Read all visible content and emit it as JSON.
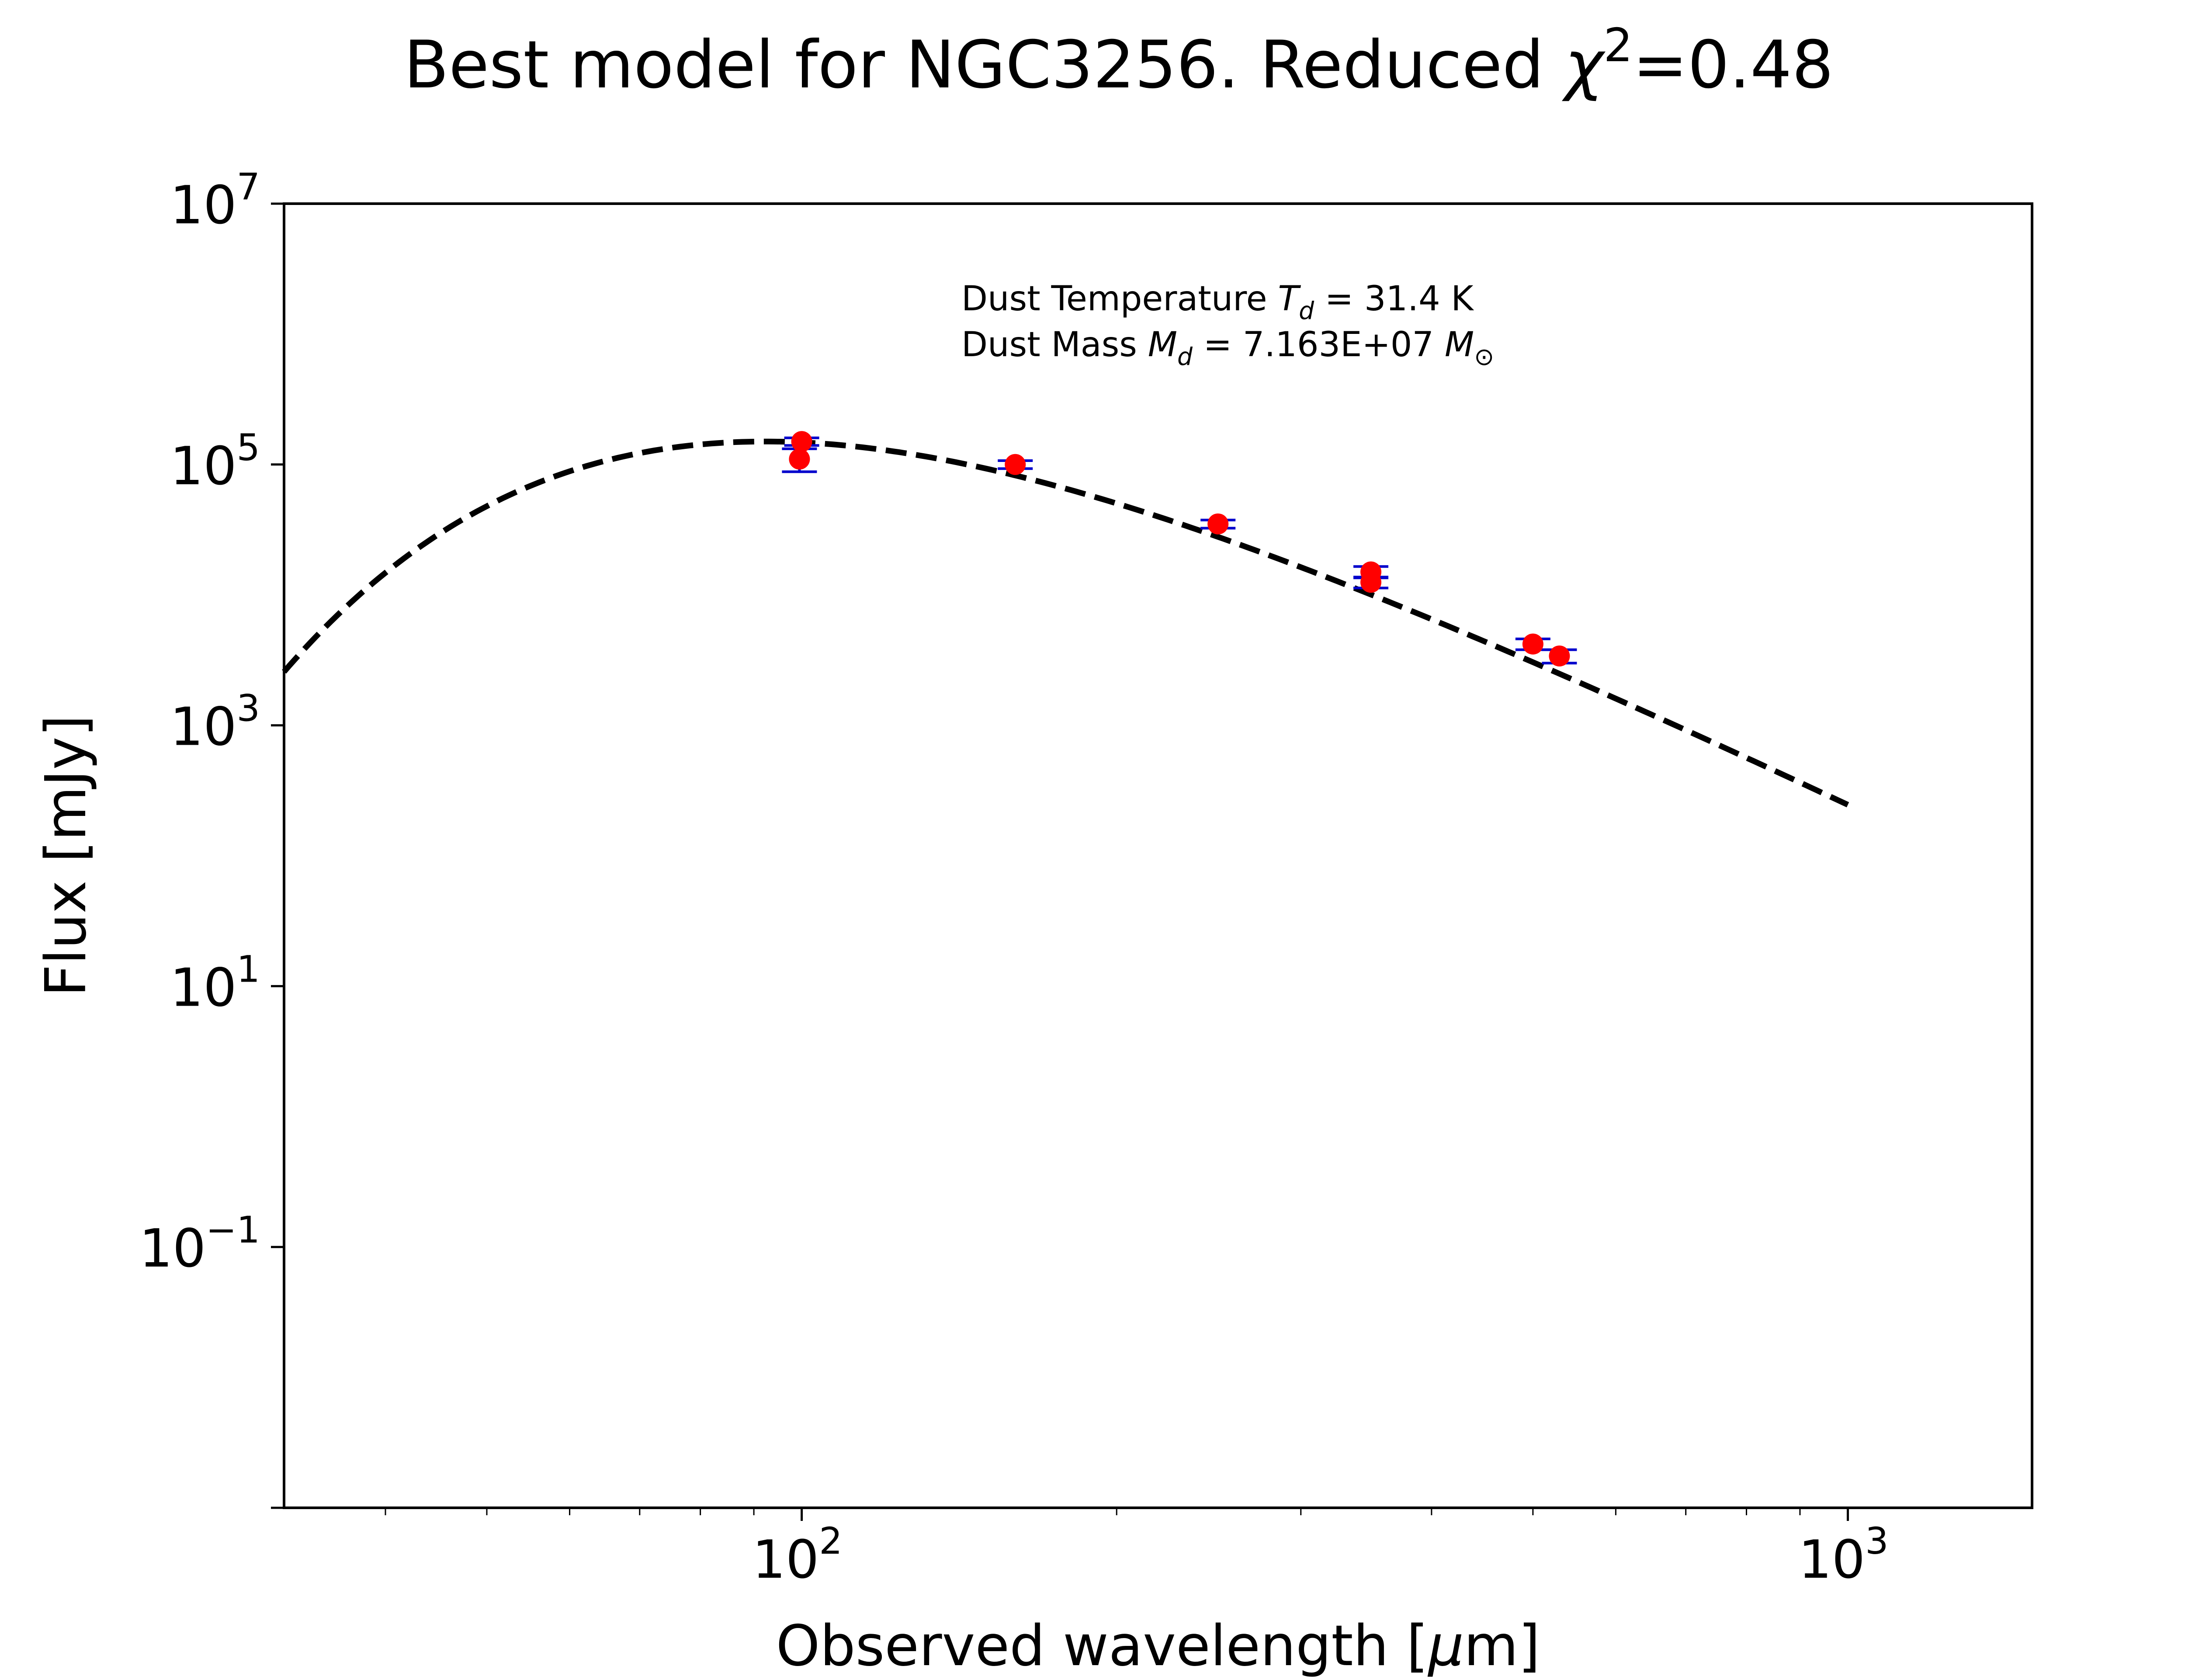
{
  "chart_data": {
    "type": "scatter",
    "title": "Best model for NGC3256. Reduced",
    "title_symbol": "χ",
    "title_exponent": "2",
    "title_value": "=0.48",
    "xlabel": "Observed wavelength [",
    "xlabel_unit_symbol": "μ",
    "xlabel_unit_rest": "m]",
    "ylabel": "Flux [mJy]",
    "xscale": "log",
    "yscale": "log",
    "xlim": [
      32,
      1500
    ],
    "ylim": [
      0.001,
      10000000
    ],
    "grid": false,
    "x_ticks": [
      {
        "value": 100,
        "base": "10",
        "exp": "2"
      },
      {
        "value": 1000,
        "base": "10",
        "exp": "3"
      }
    ],
    "y_ticks": [
      {
        "value": 0.1,
        "base": "10",
        "exp": "−1"
      },
      {
        "value": 10,
        "base": "10",
        "exp": "1"
      },
      {
        "value": 1000,
        "base": "10",
        "exp": "3"
      },
      {
        "value": 100000,
        "base": "10",
        "exp": "5"
      },
      {
        "value": 10000000,
        "base": "10",
        "exp": "7"
      }
    ],
    "annotation": {
      "line1_prefix": "Dust Temperature ",
      "line1_symbol": "T",
      "line1_sub": "d",
      "line1_value": " = 31.4 K",
      "line2_prefix": "Dust Mass ",
      "line2_symbol": "M",
      "line2_sub": "d",
      "line2_value": " = 7.163E+07 ",
      "line2_unit_symbol": "M",
      "line2_unit_sub": "⊙"
    },
    "model": {
      "style": "dashed",
      "color": "#000000",
      "temperature_K": 31.4,
      "beta": 2,
      "x_range": [
        32,
        1000
      ],
      "peak_x": 100,
      "peak_y": 150000
    },
    "observations": [
      {
        "x": 100,
        "y": 150000,
        "yerr_low": 10000,
        "yerr_high": 10000
      },
      {
        "x": 99.5,
        "y": 110000,
        "yerr_low": 22000,
        "yerr_high": 22000
      },
      {
        "x": 160,
        "y": 100000,
        "yerr_low": 7000,
        "yerr_high": 7000
      },
      {
        "x": 250,
        "y": 35000,
        "yerr_low": 2500,
        "yerr_high": 2500
      },
      {
        "x": 350,
        "y": 15000,
        "yerr_low": 1500,
        "yerr_high": 1500
      },
      {
        "x": 350,
        "y": 12500,
        "yerr_low": 1200,
        "yerr_high": 1200
      },
      {
        "x": 500,
        "y": 4200,
        "yerr_low": 400,
        "yerr_high": 400
      },
      {
        "x": 530,
        "y": 3400,
        "yerr_low": 400,
        "yerr_high": 400
      }
    ],
    "point_color": "#ff0000",
    "errorbar_color": "#0000cc"
  }
}
